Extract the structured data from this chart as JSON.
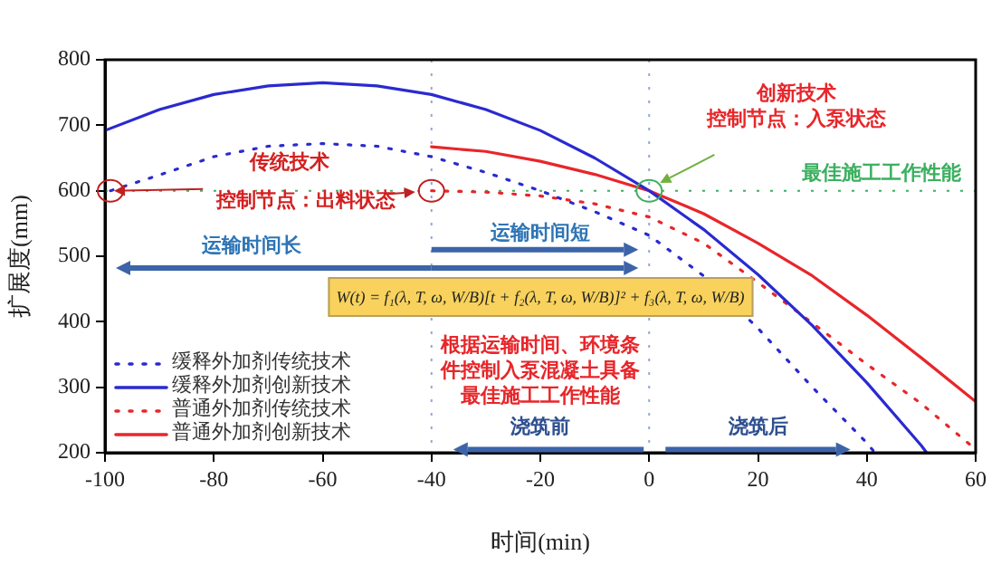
{
  "chart_data": {
    "type": "line",
    "xlabel": "时间(min)",
    "ylabel": "扩展度(mm)",
    "xlim": [
      -100,
      60
    ],
    "xticks": [
      -100,
      -80,
      -60,
      -40,
      -20,
      0,
      20,
      40,
      60
    ],
    "ylim": [
      200,
      800
    ],
    "yticks": [
      200,
      300,
      400,
      500,
      600,
      700,
      800
    ],
    "grid": false,
    "legend": "bottom left",
    "marker": "none",
    "series": [
      {
        "name": "缓释外加剂传统技术",
        "color": "#2a2ad0",
        "line_style": "dotted",
        "x": [
          -99,
          -90,
          -80,
          -70,
          -60,
          -50,
          -40,
          -30,
          -20,
          -10,
          0,
          10,
          20,
          30,
          40,
          41.5
        ],
        "values": [
          600,
          624,
          652,
          668,
          672,
          668,
          652,
          628,
          600,
          568,
          532,
          470,
          390,
          300,
          215,
          200
        ]
      },
      {
        "name": "缓释外加剂创新技术",
        "color": "#2a2ad0",
        "line_style": "solid",
        "x": [
          -100,
          -90,
          -80,
          -70,
          -60,
          -50,
          -40,
          -30,
          -20,
          -10,
          0,
          10,
          20,
          30,
          40,
          50,
          51
        ],
        "values": [
          692,
          724,
          747,
          760,
          765,
          760,
          747,
          724,
          692,
          650,
          600,
          541,
          472,
          394,
          307,
          211,
          200
        ]
      },
      {
        "name": "普通外加剂传统技术",
        "color": "#e8262a",
        "line_style": "dotted",
        "x": [
          -40,
          -30,
          -20,
          -10,
          0,
          10,
          20,
          30,
          40,
          50,
          60
        ],
        "values": [
          600,
          598,
          592,
          580,
          560,
          520,
          460,
          398,
          335,
          275,
          205
        ]
      },
      {
        "name": "普通外加剂创新技术",
        "color": "#e8262a",
        "line_style": "solid",
        "x": [
          -40,
          -30,
          -20,
          -10,
          0,
          10,
          20,
          30,
          40,
          50,
          60
        ],
        "values": [
          667,
          660,
          645,
          625,
          600,
          565,
          520,
          470,
          410,
          345,
          278
        ]
      }
    ],
    "ref_lines": [
      {
        "axis": "x",
        "value": -40,
        "color": "#8fa8d8",
        "line_style": "dotted"
      },
      {
        "axis": "x",
        "value": 0,
        "color": "#8fa8d8",
        "line_style": "dotted"
      },
      {
        "axis": "y",
        "value": 600,
        "color": "#3cb060",
        "line_style": "dotted",
        "label": "最佳施工工作性能"
      }
    ],
    "annotations": [
      "传统技术",
      {
        "text": "控制节点：出料状态",
        "x": -99,
        "y": 600
      },
      "创新技术",
      "控制节点：入泵状态",
      "运输时间长",
      "运输时间短",
      "W(t) = f₁(λ, T, ω, W/B)[t + f₂(λ, T, ω, W/B)]² + f₃(λ, T, ω, W/B)",
      "根据运输时间、环境条",
      "件控制入泵混凝土具备",
      "最佳施工工作性能",
      "浇筑前",
      "浇筑后"
    ]
  }
}
